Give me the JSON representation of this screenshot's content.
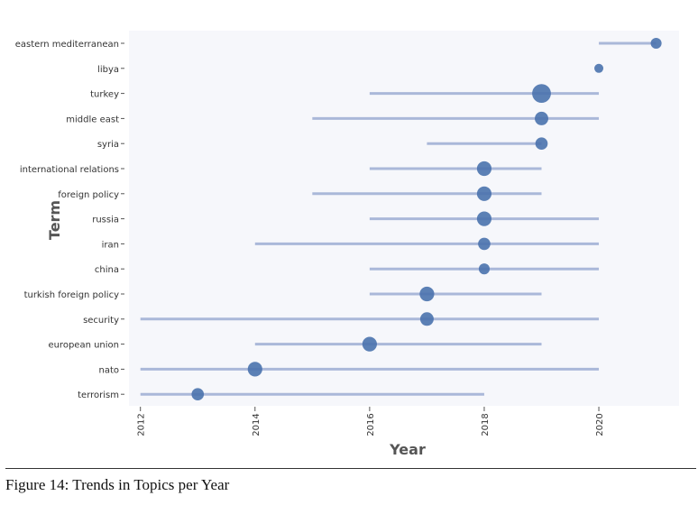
{
  "chart_data": {
    "type": "scatter",
    "xlabel": "Year",
    "ylabel": "Term",
    "xlim": [
      2011.8,
      2021.4
    ],
    "xticks": [
      2012,
      2014,
      2016,
      2018,
      2020
    ],
    "grid": false,
    "colors": {
      "point": "#4a72ad",
      "range": "#aab8d9",
      "plot_bg": "#f6f7fb"
    },
    "terms": [
      {
        "term": "eastern mediterranean",
        "start": 2020,
        "end": 2021,
        "peak": 2021,
        "freq": 2
      },
      {
        "term": "libya",
        "start": 2020,
        "end": 2020,
        "peak": 2020,
        "freq": 1
      },
      {
        "term": "turkey",
        "start": 2016,
        "end": 2020,
        "peak": 2019,
        "freq": 10
      },
      {
        "term": "middle east",
        "start": 2015,
        "end": 2020,
        "peak": 2019,
        "freq": 4
      },
      {
        "term": "syria",
        "start": 2017,
        "end": 2019,
        "peak": 2019,
        "freq": 3
      },
      {
        "term": "international relations",
        "start": 2016,
        "end": 2019,
        "peak": 2018,
        "freq": 5
      },
      {
        "term": "foreign policy",
        "start": 2015,
        "end": 2019,
        "peak": 2018,
        "freq": 5
      },
      {
        "term": "russia",
        "start": 2016,
        "end": 2020,
        "peak": 2018,
        "freq": 5
      },
      {
        "term": "iran",
        "start": 2014,
        "end": 2020,
        "peak": 2018,
        "freq": 3
      },
      {
        "term": "china",
        "start": 2016,
        "end": 2020,
        "peak": 2018,
        "freq": 2
      },
      {
        "term": "turkish foreign policy",
        "start": 2016,
        "end": 2019,
        "peak": 2017,
        "freq": 5
      },
      {
        "term": "security",
        "start": 2012,
        "end": 2020,
        "peak": 2017,
        "freq": 4
      },
      {
        "term": "european union",
        "start": 2014,
        "end": 2019,
        "peak": 2016,
        "freq": 5
      },
      {
        "term": "nato",
        "start": 2012,
        "end": 2020,
        "peak": 2014,
        "freq": 5
      },
      {
        "term": "terrorism",
        "start": 2012,
        "end": 2018,
        "peak": 2013,
        "freq": 3
      }
    ]
  },
  "caption": "Figure 14: Trends in Topics per Year"
}
